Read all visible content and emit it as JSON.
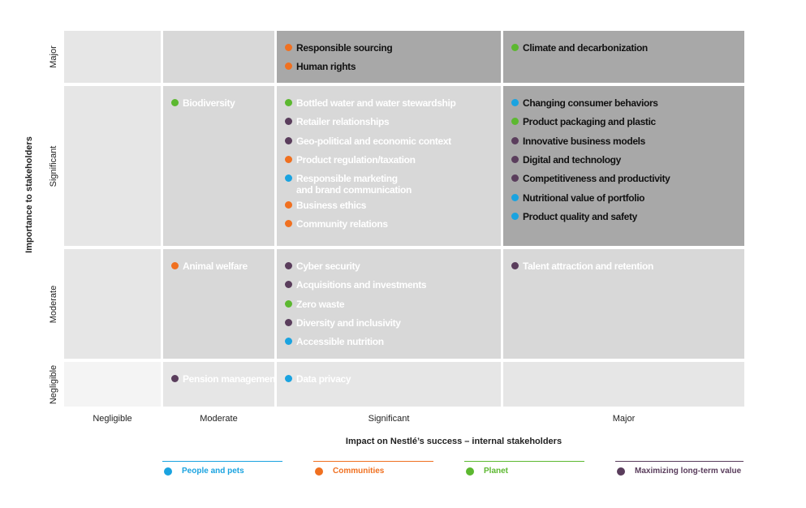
{
  "chart_data": {
    "type": "heatmap",
    "title": "",
    "xlabel": "Impact on Nestlé’s success – internal stakeholders",
    "ylabel": "Importance to stakeholders",
    "x_levels": [
      "Negligible",
      "Moderate",
      "Significant",
      "Major"
    ],
    "y_levels": [
      "Major",
      "Significant",
      "Moderate",
      "Negligible"
    ],
    "categories": [
      {
        "key": "people",
        "name": "People and pets",
        "color": "#1aa3e0"
      },
      {
        "key": "communities",
        "name": "Communities",
        "color": "#f07020"
      },
      {
        "key": "planet",
        "name": "Planet",
        "color": "#5cb830"
      },
      {
        "key": "value",
        "name": "Maximizing long-term value",
        "color": "#5a3d5c"
      }
    ],
    "cells": [
      {
        "x": "Negligible",
        "y": "Major",
        "items": []
      },
      {
        "x": "Moderate",
        "y": "Major",
        "items": []
      },
      {
        "x": "Significant",
        "y": "Major",
        "items": [
          {
            "label": "Responsible sourcing",
            "category": "communities"
          },
          {
            "label": "Human rights",
            "category": "communities"
          }
        ]
      },
      {
        "x": "Major",
        "y": "Major",
        "items": [
          {
            "label": "Climate and decarbonization",
            "category": "planet"
          }
        ]
      },
      {
        "x": "Negligible",
        "y": "Significant",
        "items": []
      },
      {
        "x": "Moderate",
        "y": "Significant",
        "items": [
          {
            "label": "Biodiversity",
            "category": "planet"
          }
        ]
      },
      {
        "x": "Significant",
        "y": "Significant",
        "items": [
          {
            "label": "Bottled water and water stewardship",
            "category": "planet"
          },
          {
            "label": "Retailer relationships",
            "category": "value"
          },
          {
            "label": "Geo-political and economic context",
            "category": "value"
          },
          {
            "label": "Product regulation/taxation",
            "category": "communities"
          },
          {
            "label": "Responsible marketing\nand brand communication",
            "category": "people"
          },
          {
            "label": "Business ethics",
            "category": "communities"
          },
          {
            "label": "Community relations",
            "category": "communities"
          }
        ]
      },
      {
        "x": "Major",
        "y": "Significant",
        "items": [
          {
            "label": "Changing consumer behaviors",
            "category": "people"
          },
          {
            "label": "Product packaging and plastic",
            "category": "planet"
          },
          {
            "label": "Innovative business models",
            "category": "value"
          },
          {
            "label": "Digital and technology",
            "category": "value"
          },
          {
            "label": "Competitiveness and productivity",
            "category": "value"
          },
          {
            "label": "Nutritional value of portfolio",
            "category": "people"
          },
          {
            "label": "Product quality and safety",
            "category": "people"
          }
        ]
      },
      {
        "x": "Negligible",
        "y": "Moderate",
        "items": []
      },
      {
        "x": "Moderate",
        "y": "Moderate",
        "items": [
          {
            "label": "Animal welfare",
            "category": "communities"
          }
        ]
      },
      {
        "x": "Significant",
        "y": "Moderate",
        "items": [
          {
            "label": "Cyber security",
            "category": "value"
          },
          {
            "label": "Acquisitions and investments",
            "category": "value"
          },
          {
            "label": "Zero waste",
            "category": "planet"
          },
          {
            "label": "Diversity and inclusivity",
            "category": "value"
          },
          {
            "label": "Accessible nutrition",
            "category": "people"
          }
        ]
      },
      {
        "x": "Major",
        "y": "Moderate",
        "items": [
          {
            "label": "Talent attraction and retention",
            "category": "value"
          }
        ]
      },
      {
        "x": "Negligible",
        "y": "Negligible",
        "items": []
      },
      {
        "x": "Moderate",
        "y": "Negligible",
        "items": [
          {
            "label": "Pension management",
            "category": "value"
          }
        ]
      },
      {
        "x": "Significant",
        "y": "Negligible",
        "items": [
          {
            "label": "Data privacy",
            "category": "people"
          }
        ]
      },
      {
        "x": "Major",
        "y": "Negligible",
        "items": []
      }
    ],
    "legend": "bottom",
    "grid": true
  }
}
